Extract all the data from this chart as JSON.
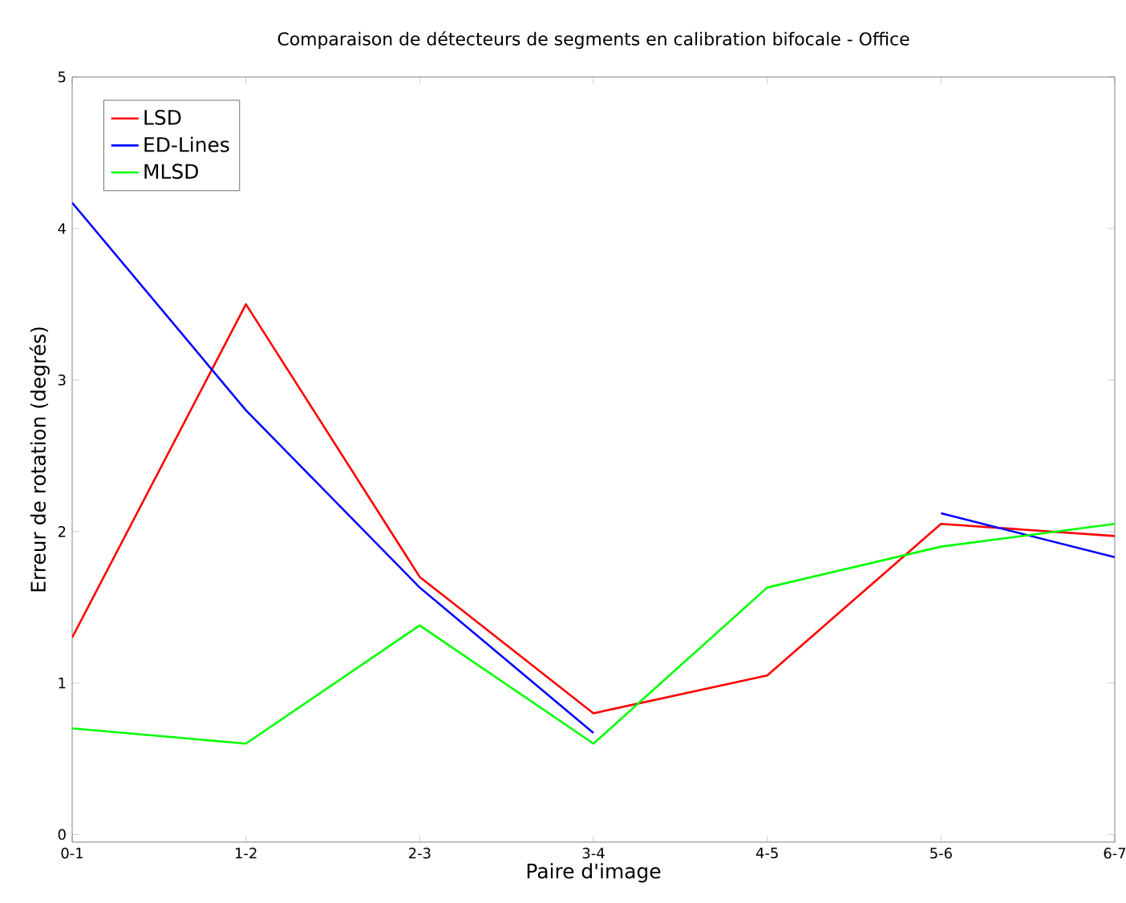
{
  "chart_data": {
    "type": "line",
    "title": "Comparaison de détecteurs de segments en calibration bifocale - Office",
    "xlabel": "Paire d'image",
    "ylabel": "Erreur de rotation (degrés)",
    "categories": [
      "0-1",
      "1-2",
      "2-3",
      "3-4",
      "4-5",
      "5-6",
      "6-7"
    ],
    "series": [
      {
        "name": "LSD",
        "color": "#ff0000",
        "values": [
          1.3,
          3.5,
          1.7,
          0.8,
          1.05,
          2.05,
          1.97
        ]
      },
      {
        "name": "ED-Lines",
        "color": "#0000ff",
        "values": [
          4.17,
          2.8,
          1.63,
          0.67,
          null,
          2.12,
          1.83
        ]
      },
      {
        "name": "MLSD",
        "color": "#00ff00",
        "values": [
          0.7,
          0.6,
          1.38,
          0.6,
          1.63,
          1.9,
          2.05
        ]
      }
    ],
    "ylim": [
      -0.05,
      5
    ],
    "yticks": [
      0,
      1,
      2,
      3,
      4,
      5
    ],
    "grid": false,
    "legend": "top left",
    "marker": "none",
    "line_style": "solid"
  }
}
